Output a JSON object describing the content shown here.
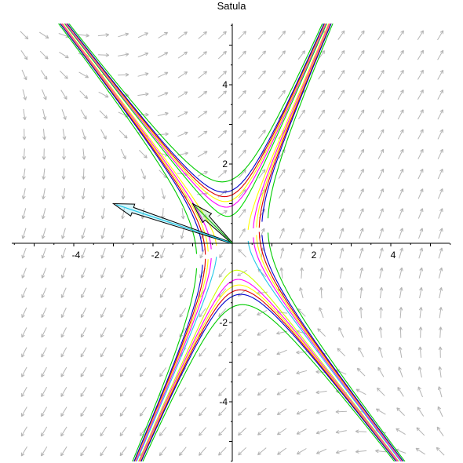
{
  "chart_data": {
    "type": "line",
    "title": "Satula",
    "xlabel": "",
    "ylabel": "",
    "xlim": [
      -5.5,
      5.5
    ],
    "ylim": [
      -5.5,
      5.5
    ],
    "xticks": [
      -4,
      -2,
      2,
      4
    ],
    "yticks": [
      -4,
      -2,
      2,
      4
    ],
    "xtick_labels": [
      "-4",
      "-2",
      "2",
      "4"
    ],
    "ytick_labels": [
      "-4",
      "-2",
      "2",
      "4"
    ],
    "grid": false,
    "direction_field": {
      "a": 1,
      "b": 2,
      "c": 3,
      "d": 2,
      "color": "#b4b4b4"
    },
    "eigenvectors": [
      {
        "x": [
          0,
          -3
        ],
        "y": [
          0,
          1
        ],
        "color": "#22c8e8"
      },
      {
        "x": [
          0,
          -1
        ],
        "y": [
          0,
          1
        ],
        "color": "#22bb22"
      }
    ],
    "series": [
      {
        "k": -2.6,
        "color": "#00cc00"
      },
      {
        "k": 2.6,
        "color": "#00cc00"
      },
      {
        "k": -1.5,
        "color": "#dd0000"
      },
      {
        "k": 1.5,
        "color": "#dd0000"
      },
      {
        "k": -0.5,
        "color": "#00dd00",
        "branch": "upper"
      },
      {
        "k": 0.5,
        "color": "#22c8e8",
        "branch": "lower"
      },
      {
        "k": 0.5,
        "color": "#ffff00",
        "branch": "upper"
      },
      {
        "k": -0.5,
        "color": "#ccff00",
        "branch": "lower"
      },
      {
        "k": -1.2,
        "color": "#ffff00"
      },
      {
        "k": 1.2,
        "color": "#ffff00"
      },
      {
        "k": -0.9,
        "color": "#ff00ff"
      },
      {
        "k": 0.9,
        "color": "#ff00ff"
      },
      {
        "k": -1.8,
        "color": "#0000cc"
      },
      {
        "k": 1.8,
        "color": "#0000cc"
      }
    ]
  }
}
